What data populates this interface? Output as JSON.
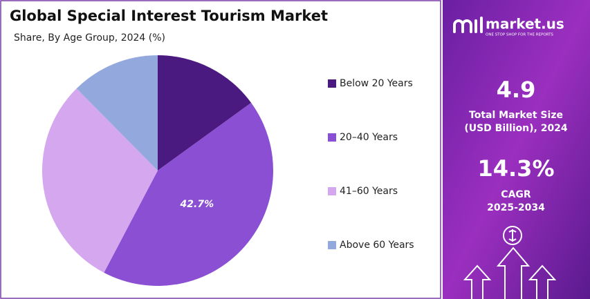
{
  "chart_data": {
    "type": "pie",
    "title": "Global Special Interest Tourism Market",
    "subtitle": "Share, By Age Group, 2024 (%)",
    "categories": [
      "Below 20 Years",
      "20–40 Years",
      "41–60 Years",
      "Above 60 Years"
    ],
    "values": [
      15.0,
      42.7,
      29.9,
      12.4
    ],
    "value_labels": [
      null,
      "42.7%",
      null,
      null
    ],
    "colors": [
      "#4b1a80",
      "#8a4fd2",
      "#d4a7ef",
      "#93a9dd"
    ],
    "legend": "right"
  },
  "panel": {
    "brand": "market.us",
    "tagline": "ONE STOP SHOP FOR THE REPORTS",
    "market_size": "4.9",
    "market_size_label_1": "Total Market Size",
    "market_size_label_2": "(USD Billion), 2024",
    "cagr": "14.3%",
    "cagr_label_1": "CAGR",
    "cagr_label_2": "2025-2034"
  }
}
